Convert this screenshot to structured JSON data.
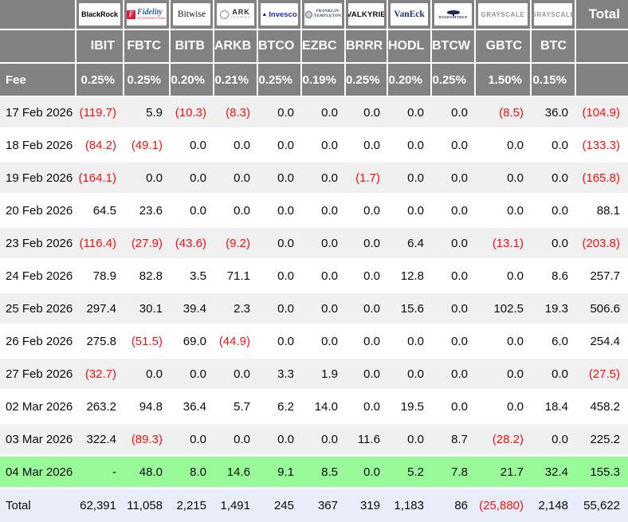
{
  "header": {
    "total_label": "Total",
    "fee_label": "Fee",
    "columns": [
      {
        "ticker": "IBIT",
        "fee": "0.25%",
        "logo": {
          "type": "blackrock",
          "text": "BlackRock"
        }
      },
      {
        "ticker": "FBTC",
        "fee": "0.25%",
        "logo": {
          "type": "fidelity",
          "text": "Fidelity",
          "sub": "INTERNATIONAL",
          "initial": "F"
        }
      },
      {
        "ticker": "BITB",
        "fee": "0.20%",
        "logo": {
          "type": "bitwise",
          "text": "Bitwise"
        }
      },
      {
        "ticker": "ARKB",
        "fee": "0.21%",
        "logo": {
          "type": "ark",
          "text": "ARK",
          "sub": "INVEST"
        }
      },
      {
        "ticker": "BTCO",
        "fee": "0.25%",
        "logo": {
          "type": "invesco",
          "text": "Invesco"
        }
      },
      {
        "ticker": "EZBC",
        "fee": "0.19%",
        "logo": {
          "type": "franklin",
          "text": "FRANKLIN",
          "sub": "TEMPLETON"
        }
      },
      {
        "ticker": "BRRR",
        "fee": "0.25%",
        "logo": {
          "type": "valkyrie",
          "text": "VALKYRIE"
        }
      },
      {
        "ticker": "HODL",
        "fee": "0.20%",
        "logo": {
          "type": "vaneck",
          "text": "VanEck"
        }
      },
      {
        "ticker": "BTCW",
        "fee": "0.25%",
        "logo": {
          "type": "wisdomtree",
          "text": "WISDOMTREE"
        }
      },
      {
        "ticker": "GBTC",
        "fee": "1.50%",
        "logo": {
          "type": "grayscale",
          "text": "GRAYSCALE"
        }
      },
      {
        "ticker": "BTC",
        "fee": "0.15%",
        "logo": {
          "type": "grayscale",
          "text": "GRAYSCALE"
        }
      }
    ]
  },
  "body": {
    "rows": [
      {
        "date": "17 Feb 2026",
        "values": [
          "(119.7)",
          "5.9",
          "(10.3)",
          "(8.3)",
          "0.0",
          "0.0",
          "0.0",
          "0.0",
          "0.0",
          "(8.5)",
          "36.0"
        ],
        "total": "(104.9)"
      },
      {
        "date": "18 Feb 2026",
        "values": [
          "(84.2)",
          "(49.1)",
          "0.0",
          "0.0",
          "0.0",
          "0.0",
          "0.0",
          "0.0",
          "0.0",
          "0.0",
          "0.0"
        ],
        "total": "(133.3)"
      },
      {
        "date": "19 Feb 2026",
        "values": [
          "(164.1)",
          "0.0",
          "0.0",
          "0.0",
          "0.0",
          "0.0",
          "(1.7)",
          "0.0",
          "0.0",
          "0.0",
          "0.0"
        ],
        "total": "(165.8)"
      },
      {
        "date": "20 Feb 2026",
        "values": [
          "64.5",
          "23.6",
          "0.0",
          "0.0",
          "0.0",
          "0.0",
          "0.0",
          "0.0",
          "0.0",
          "0.0",
          "0.0"
        ],
        "total": "88.1"
      },
      {
        "date": "23 Feb 2026",
        "values": [
          "(116.4)",
          "(27.9)",
          "(43.6)",
          "(9.2)",
          "0.0",
          "0.0",
          "0.0",
          "6.4",
          "0.0",
          "(13.1)",
          "0.0"
        ],
        "total": "(203.8)"
      },
      {
        "date": "24 Feb 2026",
        "values": [
          "78.9",
          "82.8",
          "3.5",
          "71.1",
          "0.0",
          "0.0",
          "0.0",
          "12.8",
          "0.0",
          "0.0",
          "8.6"
        ],
        "total": "257.7"
      },
      {
        "date": "25 Feb 2026",
        "values": [
          "297.4",
          "30.1",
          "39.4",
          "2.3",
          "0.0",
          "0.0",
          "0.0",
          "15.6",
          "0.0",
          "102.5",
          "19.3"
        ],
        "total": "506.6"
      },
      {
        "date": "26 Feb 2026",
        "values": [
          "275.8",
          "(51.5)",
          "69.0",
          "(44.9)",
          "0.0",
          "0.0",
          "0.0",
          "0.0",
          "0.0",
          "0.0",
          "6.0"
        ],
        "total": "254.4"
      },
      {
        "date": "27 Feb 2026",
        "values": [
          "(32.7)",
          "0.0",
          "0.0",
          "0.0",
          "3.3",
          "1.9",
          "0.0",
          "0.0",
          "0.0",
          "0.0",
          "0.0"
        ],
        "total": "(27.5)"
      },
      {
        "date": "02 Mar 2026",
        "values": [
          "263.2",
          "94.8",
          "36.4",
          "5.7",
          "6.2",
          "14.0",
          "0.0",
          "19.5",
          "0.0",
          "0.0",
          "18.4"
        ],
        "total": "458.2"
      },
      {
        "date": "03 Mar 2026",
        "values": [
          "322.4",
          "(89.3)",
          "0.0",
          "0.0",
          "0.0",
          "0.0",
          "11.6",
          "0.0",
          "8.7",
          "(28.2)",
          "0.0"
        ],
        "total": "225.2"
      },
      {
        "date": "04 Mar 2026",
        "values": [
          "-",
          "48.0",
          "8.0",
          "14.6",
          "9.1",
          "8.5",
          "0.0",
          "5.2",
          "7.8",
          "21.7",
          "32.4"
        ],
        "total": "155.3",
        "highlight": true
      }
    ]
  },
  "footer": {
    "label": "Total",
    "values": [
      "62,391",
      "11,058",
      "2,215",
      "1,491",
      "245",
      "367",
      "319",
      "1,183",
      "86",
      "(25,880)",
      "2,148"
    ],
    "total": "55,622"
  },
  "colors": {
    "header_bg": "#828282",
    "row_alt": "#f0f0f0",
    "highlight_green": "#98fa98",
    "footer_bg": "#e9edf8",
    "negative_red": "#fb0f0f"
  }
}
